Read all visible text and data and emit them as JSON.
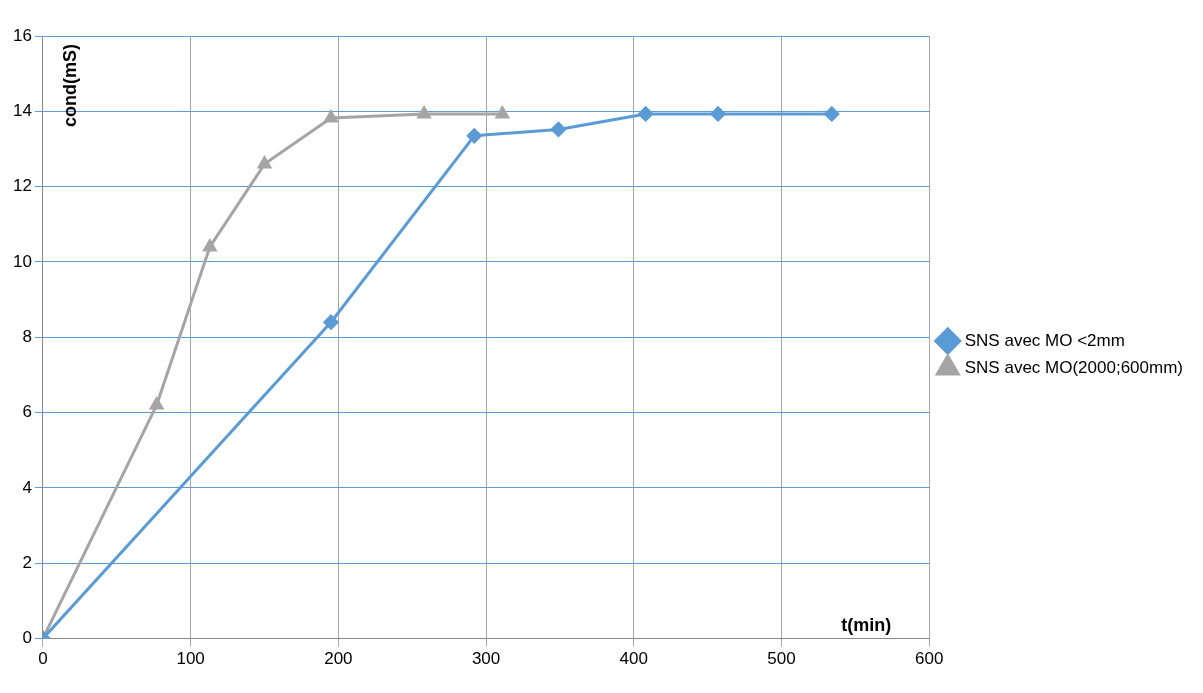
{
  "chart_data": {
    "type": "line",
    "xlabel": "t(min)",
    "ylabel": "cond(mS)",
    "xlim": [
      0,
      600
    ],
    "xticks": [
      0,
      100,
      200,
      300,
      400,
      500,
      600
    ],
    "ylim": [
      0,
      16
    ],
    "yticks": [
      0,
      2,
      4,
      6,
      8,
      10,
      12,
      14,
      16
    ],
    "grid": true,
    "legend": "right",
    "line_style": "solid",
    "series": [
      {
        "name": "SNS avec MO <2mm",
        "color": "#5b9bd5",
        "marker": "diamond",
        "x": [
          0,
          195,
          292,
          349,
          408,
          457,
          534
        ],
        "values": [
          0,
          8.4,
          13.35,
          13.52,
          13.93,
          13.93,
          13.93
        ]
      },
      {
        "name": "SNS avec MO(2000;600mm)",
        "color": "#a5a5a5",
        "marker": "triangle",
        "x": [
          0,
          77,
          113,
          150,
          195,
          258,
          311
        ],
        "values": [
          0,
          6.2,
          10.4,
          12.6,
          13.82,
          13.93,
          13.93
        ]
      }
    ]
  }
}
